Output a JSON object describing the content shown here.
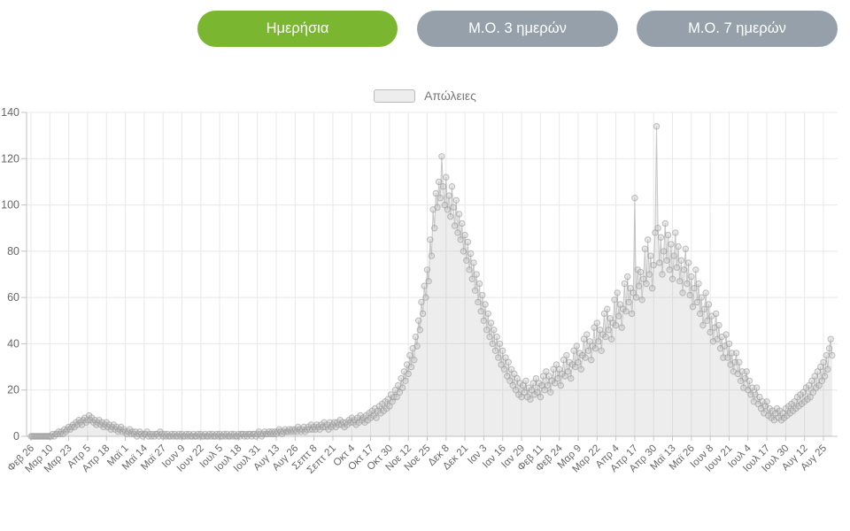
{
  "buttons": [
    {
      "label": "Ημερήσια",
      "active": true
    },
    {
      "label": "Μ.Ο. 3 ημερών",
      "active": false
    },
    {
      "label": "Μ.Ο. 7 ημερών",
      "active": false
    }
  ],
  "colors": {
    "active_button": "#7ab62f",
    "inactive_button": "#95a0aa",
    "button_text": "#ffffff",
    "grid": "#e8e8e8",
    "axis": "#c3c3c3",
    "tick_label": "#666666",
    "legend_label": "#777777",
    "series_line": "rgba(160,160,160,0.55)",
    "series_fill": "rgba(173,173,173,0.22)",
    "marker_stroke": "rgba(150,150,150,0.6)",
    "marker_fill": "rgba(190,190,190,0.35)"
  },
  "chart_data": {
    "type": "line",
    "title": "",
    "legend": [
      {
        "label": "Απώλειες"
      }
    ],
    "legend_position": "top-center",
    "grid": true,
    "ylim": [
      0,
      140
    ],
    "y_ticks": [
      0,
      20,
      40,
      60,
      80,
      100,
      120,
      140
    ],
    "tick_interval_days": 13,
    "x_tick_labels": [
      "Φεβ 26",
      "Μαρ 10",
      "Μαρ 23",
      "Απρ 5",
      "Απρ 18",
      "Μαϊ 1",
      "Μαϊ 14",
      "Μαϊ 27",
      "Ιουν 9",
      "Ιουν 22",
      "Ιουλ 5",
      "Ιουλ 18",
      "Ιουλ 31",
      "Αυγ 13",
      "Αυγ 26",
      "Σεπτ 8",
      "Σεπτ 21",
      "Οκτ 4",
      "Οκτ 17",
      "Οκτ 30",
      "Νοε 12",
      "Νοε 25",
      "Δεκ 8",
      "Δεκ 21",
      "Ιαν 3",
      "Ιαν 16",
      "Ιαν 29",
      "Φεβ 11",
      "Φεβ 24",
      "Μαρ 9",
      "Μαρ 22",
      "Απρ 4",
      "Απρ 17",
      "Απρ 30",
      "Μαϊ 13",
      "Μαϊ 26",
      "Ιουν 8",
      "Ιουν 21",
      "Ιουλ 4",
      "Ιουλ 17",
      "Ιουλ 30",
      "Αυγ 12",
      "Αυγ 25"
    ],
    "values": [
      0,
      0,
      0,
      0,
      0,
      0,
      0,
      0,
      0,
      0,
      0,
      0,
      0,
      0,
      0,
      1,
      0,
      1,
      1,
      2,
      1,
      2,
      1,
      3,
      2,
      3,
      4,
      3,
      4,
      5,
      4,
      6,
      5,
      7,
      6,
      5,
      7,
      8,
      6,
      7,
      9,
      7,
      8,
      6,
      7,
      5,
      6,
      7,
      5,
      6,
      4,
      5,
      6,
      4,
      5,
      3,
      4,
      5,
      3,
      4,
      2,
      3,
      4,
      2,
      3,
      2,
      1,
      2,
      3,
      1,
      2,
      1,
      2,
      0,
      1,
      2,
      1,
      0,
      1,
      1,
      2,
      0,
      1,
      0,
      1,
      0,
      1,
      1,
      0,
      2,
      1,
      0,
      1,
      0,
      1,
      0,
      0,
      1,
      0,
      1,
      0,
      0,
      1,
      0,
      1,
      0,
      0,
      1,
      0,
      1,
      0,
      0,
      1,
      0,
      0,
      1,
      0,
      1,
      0,
      0,
      1,
      0,
      0,
      1,
      0,
      1,
      0,
      0,
      1,
      0,
      1,
      0,
      0,
      1,
      0,
      1,
      0,
      0,
      1,
      0,
      1,
      0,
      0,
      1,
      0,
      1,
      1,
      0,
      1,
      0,
      1,
      1,
      0,
      1,
      1,
      0,
      1,
      2,
      1,
      0,
      1,
      2,
      1,
      1,
      2,
      1,
      2,
      1,
      2,
      1,
      2,
      3,
      2,
      1,
      2,
      3,
      2,
      2,
      3,
      2,
      3,
      2,
      3,
      2,
      4,
      3,
      2,
      3,
      4,
      2,
      3,
      4,
      3,
      5,
      3,
      4,
      3,
      5,
      4,
      3,
      5,
      4,
      6,
      4,
      5,
      3,
      6,
      4,
      5,
      6,
      4,
      6,
      5,
      7,
      5,
      6,
      4,
      6,
      5,
      7,
      6,
      8,
      6,
      7,
      5,
      8,
      6,
      9,
      7,
      8,
      6,
      9,
      7,
      10,
      8,
      11,
      9,
      12,
      8,
      11,
      13,
      10,
      14,
      11,
      15,
      12,
      16,
      13,
      18,
      15,
      17,
      20,
      17,
      22,
      19,
      25,
      21,
      28,
      24,
      31,
      27,
      35,
      30,
      38,
      33,
      43,
      39,
      50,
      46,
      58,
      53,
      65,
      60,
      72,
      67,
      85,
      78,
      98,
      90,
      105,
      99,
      110,
      103,
      121,
      108,
      100,
      112,
      98,
      104,
      95,
      108,
      99,
      91,
      102,
      88,
      96,
      85,
      92,
      80,
      87,
      76,
      84,
      72,
      79,
      68,
      75,
      63,
      70,
      58,
      66,
      54,
      61,
      50,
      57,
      46,
      53,
      43,
      49,
      40,
      46,
      37,
      43,
      34,
      40,
      31,
      37,
      29,
      34,
      26,
      32,
      24,
      29,
      22,
      27,
      20,
      25,
      18,
      23,
      17,
      22,
      19,
      24,
      17,
      21,
      16,
      20,
      23,
      18,
      25,
      19,
      23,
      17,
      22,
      26,
      20,
      28,
      22,
      26,
      19,
      24,
      29,
      23,
      31,
      25,
      29,
      22,
      27,
      33,
      26,
      35,
      28,
      32,
      25,
      31,
      37,
      30,
      39,
      32,
      36,
      29,
      35,
      42,
      34,
      44,
      37,
      41,
      33,
      39,
      47,
      38,
      49,
      41,
      46,
      37,
      44,
      53,
      43,
      55,
      46,
      51,
      42,
      49,
      59,
      48,
      62,
      52,
      57,
      47,
      55,
      66,
      54,
      69,
      58,
      64,
      53,
      62,
      103,
      60,
      72,
      65,
      71,
      59,
      68,
      81,
      66,
      85,
      70,
      78,
      64,
      74,
      88,
      134,
      90,
      75,
      86,
      70,
      80,
      92,
      76,
      87,
      72,
      83,
      68,
      78,
      88,
      73,
      82,
      67,
      76,
      62,
      72,
      81,
      66,
      75,
      61,
      69,
      56,
      64,
      72,
      58,
      66,
      53,
      60,
      48,
      55,
      62,
      50,
      57,
      45,
      52,
      41,
      47,
      53,
      42,
      48,
      38,
      43,
      34,
      39,
      44,
      34,
      40,
      31,
      36,
      28,
      32,
      36,
      27,
      32,
      24,
      28,
      21,
      25,
      28,
      20,
      24,
      18,
      21,
      15,
      18,
      21,
      14,
      17,
      12,
      15,
      10,
      13,
      15,
      9,
      12,
      8,
      11,
      7,
      10,
      12,
      8,
      11,
      7,
      10,
      8,
      12,
      9,
      13,
      10,
      14,
      11,
      15,
      12,
      17,
      13,
      18,
      14,
      19,
      15,
      21,
      16,
      22,
      17,
      24,
      19,
      26,
      21,
      28,
      22,
      30,
      24,
      32,
      26,
      35,
      29,
      38,
      42,
      35
    ]
  }
}
